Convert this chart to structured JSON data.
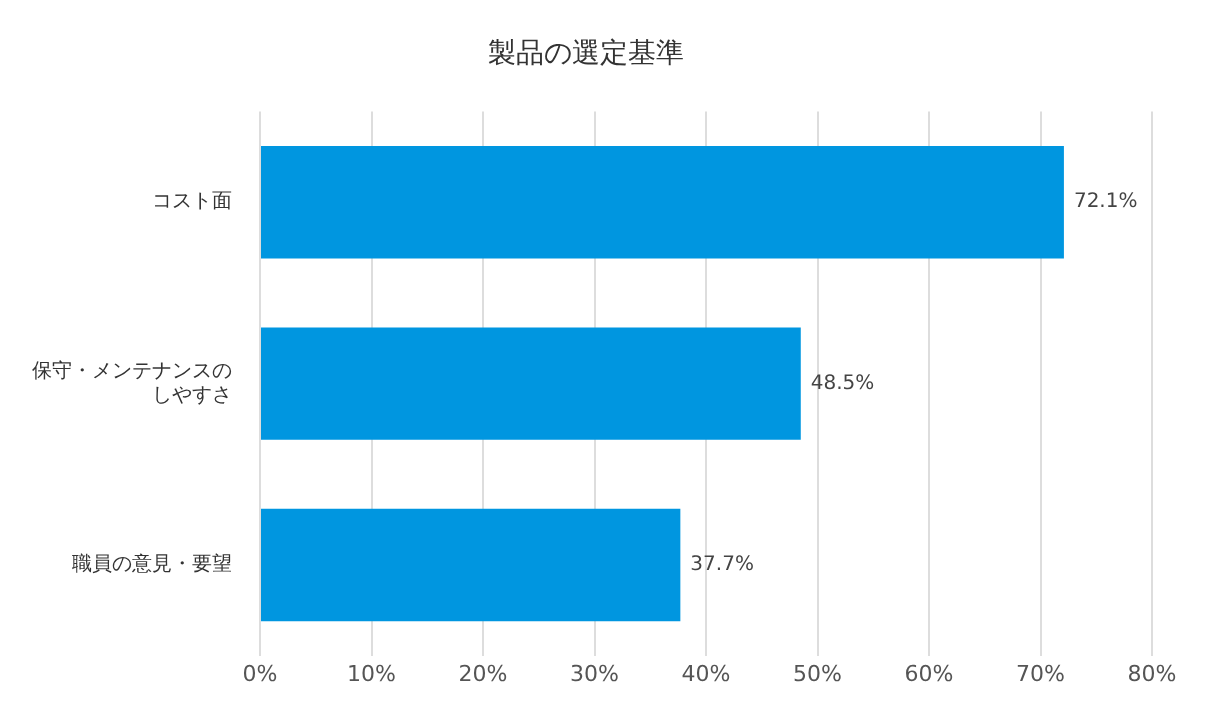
{
  "chart_data": {
    "type": "bar",
    "orientation": "horizontal",
    "title": "製品の選定基準",
    "categories": [
      "コスト面",
      "保守・メンテナンスのしやすさ",
      "職員の意見・要望"
    ],
    "values": [
      72.1,
      48.5,
      37.7
    ],
    "value_labels": [
      "72.1%",
      "48.5%",
      "37.7%"
    ],
    "color": "#0096e0",
    "xlim": [
      0,
      80
    ],
    "xticks": [
      {
        "value": 0,
        "label": "0%"
      },
      {
        "value": 10,
        "label": "10%"
      },
      {
        "value": 20,
        "label": "20%"
      },
      {
        "value": 30,
        "label": "30%"
      },
      {
        "value": 40,
        "label": "40%"
      },
      {
        "value": 50,
        "label": "50%"
      },
      {
        "value": 60,
        "label": "60%"
      },
      {
        "value": 70,
        "label": "70%"
      },
      {
        "value": 80,
        "label": "80%"
      }
    ],
    "grid": "x",
    "legend": false
  }
}
